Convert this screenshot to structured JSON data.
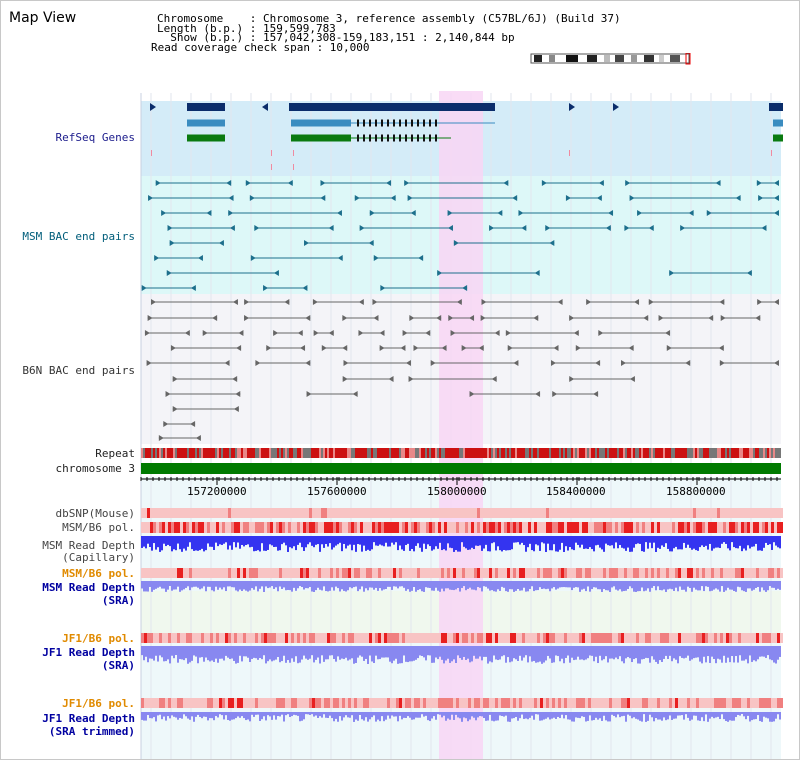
{
  "map_view": {
    "title": "Map View"
  },
  "info": {
    "chromosome_line": "Chromosome    : Chromosome 3, reference assembly (C57BL/6J) (Build 37)",
    "length_line": "Length (b.p.) : 159,599,783",
    "show_line": "  Show (b.p.) : 157,042,308-159,183,151 : 2,140,844 bp",
    "coverage_line": "Read coverage check span : 10,000"
  },
  "tracks": {
    "refseq": "RefSeq Genes",
    "msm_bac": "MSM BAC end pairs",
    "b6n_bac": "B6N BAC end pairs",
    "repeat": "Repeat",
    "chromosome": "chromosome 3",
    "dbsnp": "dbSNP(Mouse)",
    "msm_pol": "MSM/B6 pol.",
    "msm_depth_cap_1": "MSM Read Depth",
    "msm_depth_cap_2": "(Capillary)",
    "msm_pol_sra": "MSM/B6 pol.",
    "msm_depth_sra_1": "MSM Read Depth",
    "msm_depth_sra_2": "(SRA)",
    "jf1_pol": "JF1/B6 pol.",
    "jf1_depth_1": "JF1 Read Depth",
    "jf1_depth_2": "(SRA)",
    "jf1_pol_2": "JF1/B6 pol.",
    "jf1_trim_1": "JF1 Read Depth",
    "jf1_trim_2": "(SRA trimmed)"
  },
  "axis": {
    "ticks": [
      "157200000",
      "157600000",
      "158000000",
      "158400000",
      "158800000"
    ]
  },
  "colors": {
    "highlight": "#f8d6f4",
    "refseq_bg": "#d4ecf8",
    "msm_bg": "#ddf8f8",
    "b6n_bg": "#f4f4f8",
    "gene_dark": "#0b2d6b",
    "gene_mid": "#3a8cc0",
    "gene_green": "#0a7a10",
    "bac_teal": "#1d6f8c",
    "bac_grey": "#666666",
    "chrom_green": "#007a00",
    "depth_blue": "#3434f0",
    "depth_light": "#8888f0"
  }
}
